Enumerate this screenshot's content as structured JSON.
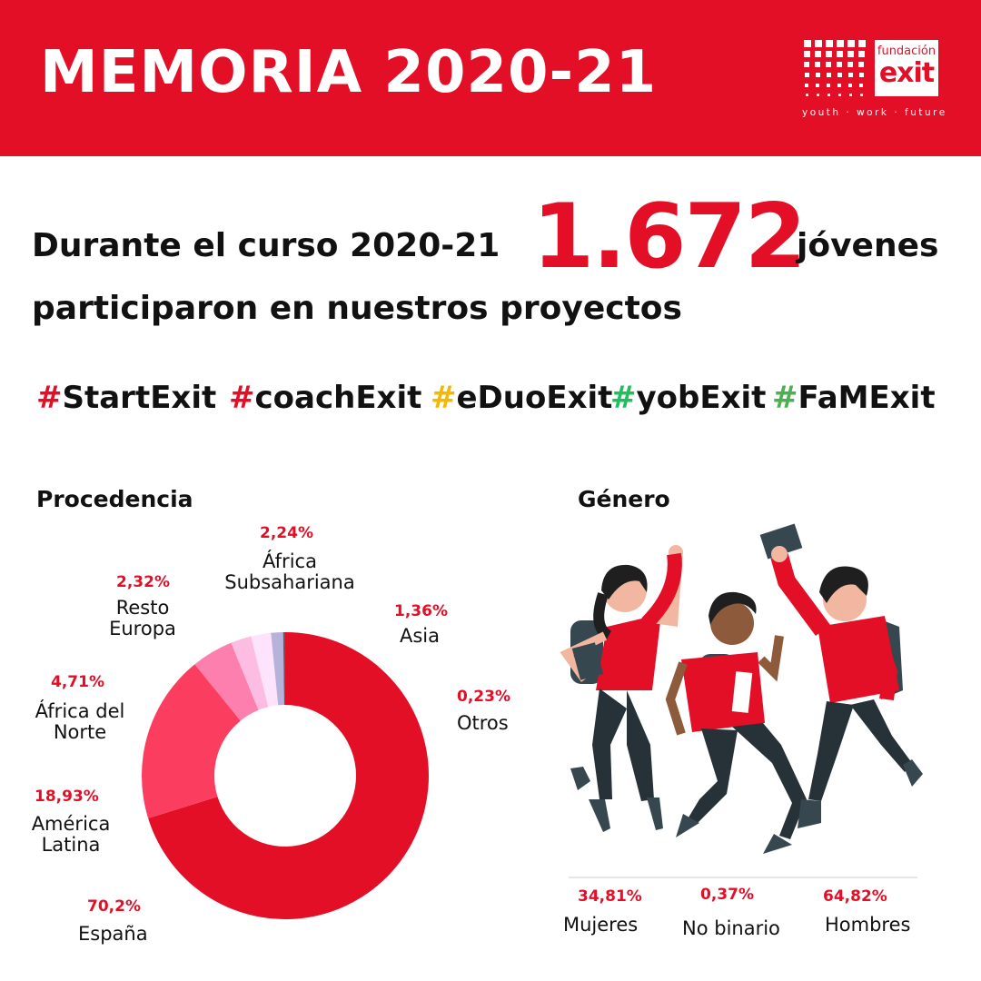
{
  "header": {
    "title": "MEMORIA 2020-21",
    "logo_small": "fundación",
    "logo_big": "exit",
    "logo_tagline": "youth · work · future"
  },
  "headline": {
    "part1": "Durante el curso 2020-21",
    "number": "1.672",
    "part2": "jóvenes",
    "line2": "participaron en nuestros proyectos"
  },
  "hashtags": [
    {
      "text": "StartExit",
      "color": "#e30f27"
    },
    {
      "text": "coachExit",
      "color": "#e30f27"
    },
    {
      "text": "eDuoExit",
      "color": "#f5b800"
    },
    {
      "text": "yobExit",
      "color": "#1fbf5b"
    },
    {
      "text": "FaMExit",
      "color": "#4caf50"
    }
  ],
  "colors": {
    "brand_red": "#e30f27",
    "slices": [
      "#e30f27",
      "#fb3d5f",
      "#fd7fae",
      "#fdbde3",
      "#fde3fb",
      "#b7b2da",
      "#5c5c70"
    ]
  },
  "procedencia": {
    "title": "Procedencia"
  },
  "genero": {
    "title": "Género",
    "items": [
      {
        "pct": "34,81%",
        "label": "Mujeres"
      },
      {
        "pct": "0,37%",
        "label": "No binario"
      },
      {
        "pct": "64,82%",
        "label": "Hombres"
      }
    ]
  },
  "chart_data": {
    "type": "pie",
    "title": "Procedencia",
    "slices": [
      {
        "label": "España",
        "value": 70.2,
        "display": "70,2%"
      },
      {
        "label": "América Latina",
        "value": 18.93,
        "display": "18,93%"
      },
      {
        "label": "África del Norte",
        "value": 4.71,
        "display": "4,71%"
      },
      {
        "label": "Resto Europa",
        "value": 2.32,
        "display": "2,32%"
      },
      {
        "label": "África Subsahariana",
        "value": 2.24,
        "display": "2,24%"
      },
      {
        "label": "Asia",
        "value": 1.36,
        "display": "1,36%"
      },
      {
        "label": "Otros",
        "value": 0.23,
        "display": "0,23%"
      }
    ]
  }
}
